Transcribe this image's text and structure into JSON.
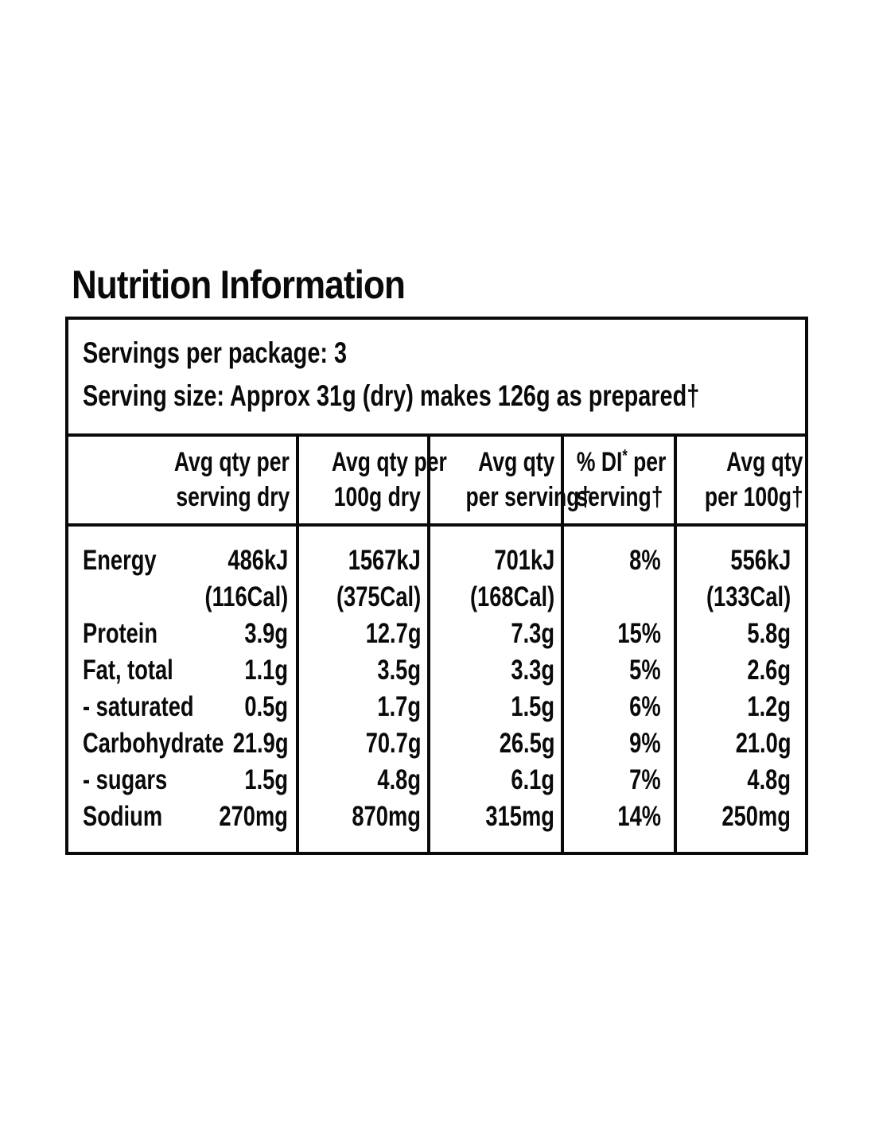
{
  "title": "Nutrition Information",
  "serving_info": {
    "servings_per_package": "Servings per package: 3",
    "serving_size": "Serving size: Approx 31g (dry) makes 126g as prepared†"
  },
  "table": {
    "headers": [
      {
        "line1": "Avg qty per",
        "line2": "serving dry"
      },
      {
        "line1": "Avg qty per",
        "line2": "100g dry"
      },
      {
        "line1": "Avg qty",
        "line2": "per serving†"
      },
      {
        "line1_pre": "% DI",
        "line1_sup": "*",
        "line1_post": " per",
        "line2": "serving†"
      },
      {
        "line1": "Avg qty",
        "line2": "per 100g†"
      }
    ],
    "rows": [
      {
        "label": "Energy",
        "serving_dry": "486kJ",
        "per_100g_dry": "1567kJ",
        "per_serving": "701kJ",
        "di_per_serving": "8%",
        "per_100g": "556kJ"
      },
      {
        "label": "",
        "serving_dry": "(116Cal)",
        "per_100g_dry": "(375Cal)",
        "per_serving": "(168Cal)",
        "di_per_serving": "",
        "per_100g": "(133Cal)"
      },
      {
        "label": "Protein",
        "serving_dry": "3.9g",
        "per_100g_dry": "12.7g",
        "per_serving": "7.3g",
        "di_per_serving": "15%",
        "per_100g": "5.8g"
      },
      {
        "label": "Fat, total",
        "serving_dry": "1.1g",
        "per_100g_dry": "3.5g",
        "per_serving": "3.3g",
        "di_per_serving": "5%",
        "per_100g": "2.6g"
      },
      {
        "label": "- saturated",
        "serving_dry": "0.5g",
        "per_100g_dry": "1.7g",
        "per_serving": "1.5g",
        "di_per_serving": "6%",
        "per_100g": "1.2g"
      },
      {
        "label": "Carbohydrate",
        "serving_dry": "21.9g",
        "per_100g_dry": "70.7g",
        "per_serving": "26.5g",
        "di_per_serving": "9%",
        "per_100g": "21.0g"
      },
      {
        "label": "- sugars",
        "serving_dry": "1.5g",
        "per_100g_dry": "4.8g",
        "per_serving": "6.1g",
        "di_per_serving": "7%",
        "per_100g": "4.8g"
      },
      {
        "label": "Sodium",
        "serving_dry": "270mg",
        "per_100g_dry": "870mg",
        "per_serving": "315mg",
        "di_per_serving": "14%",
        "per_100g": "250mg"
      }
    ]
  },
  "colors": {
    "text": "#0a0a0a",
    "border": "#0a0a0a",
    "background": "#ffffff"
  }
}
